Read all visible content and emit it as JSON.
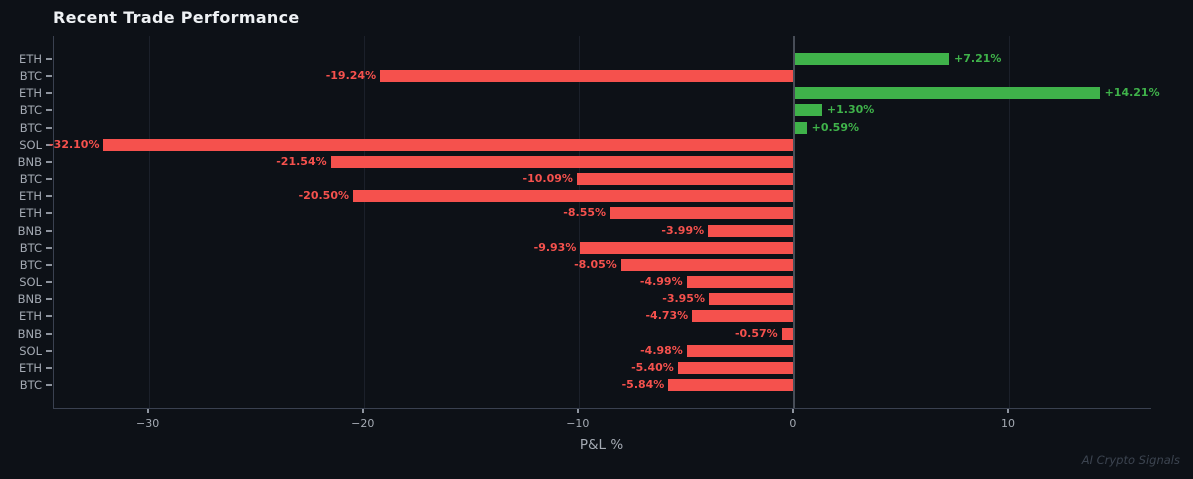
{
  "title": "Recent Trade Performance",
  "watermark": "AI Crypto Signals",
  "chart_data": {
    "type": "bar",
    "orientation": "horizontal",
    "title": "Recent Trade Performance",
    "xlabel": "P&L %",
    "ylabel": "",
    "xlim": [
      -34.4,
      16.6
    ],
    "xticks": [
      -30,
      -20,
      -10,
      0,
      10
    ],
    "xtick_labels": [
      "−30",
      "−20",
      "−10",
      "0",
      "10"
    ],
    "grid": "vertical-faint",
    "zero_line": true,
    "legend": "none",
    "categories": [
      "ETH",
      "BTC",
      "ETH",
      "BTC",
      "BTC",
      "SOL",
      "BNB",
      "BTC",
      "ETH",
      "ETH",
      "BNB",
      "BTC",
      "BTC",
      "SOL",
      "BNB",
      "ETH",
      "BNB",
      "SOL",
      "ETH",
      "BTC"
    ],
    "values": [
      7.21,
      -19.24,
      14.21,
      1.3,
      0.59,
      -32.1,
      -21.54,
      -10.09,
      -20.5,
      -8.55,
      -3.99,
      -9.93,
      -8.05,
      -4.99,
      -3.95,
      -4.73,
      -0.57,
      -4.98,
      -5.4,
      -5.84
    ],
    "bar_labels": [
      "+7.21%",
      "-19.24%",
      "+14.21%",
      "+1.30%",
      "+0.59%",
      "-32.10%",
      "-21.54%",
      "-10.09%",
      "-20.50%",
      "-8.55%",
      "-3.99%",
      "-9.93%",
      "-8.05%",
      "-4.99%",
      "-3.95%",
      "-4.73%",
      "-0.57%",
      "-4.98%",
      "-5.40%",
      "-5.84%"
    ],
    "colors": {
      "positive": "#3fb24a",
      "negative": "#f5514d",
      "background": "#0d1117",
      "grid": "#1b202a",
      "zero_line": "#474d57",
      "spine": "#3a4150",
      "axis_text": "#a4aab3",
      "title_text": "#eef1f4",
      "watermark_text": "#3c4450"
    }
  }
}
